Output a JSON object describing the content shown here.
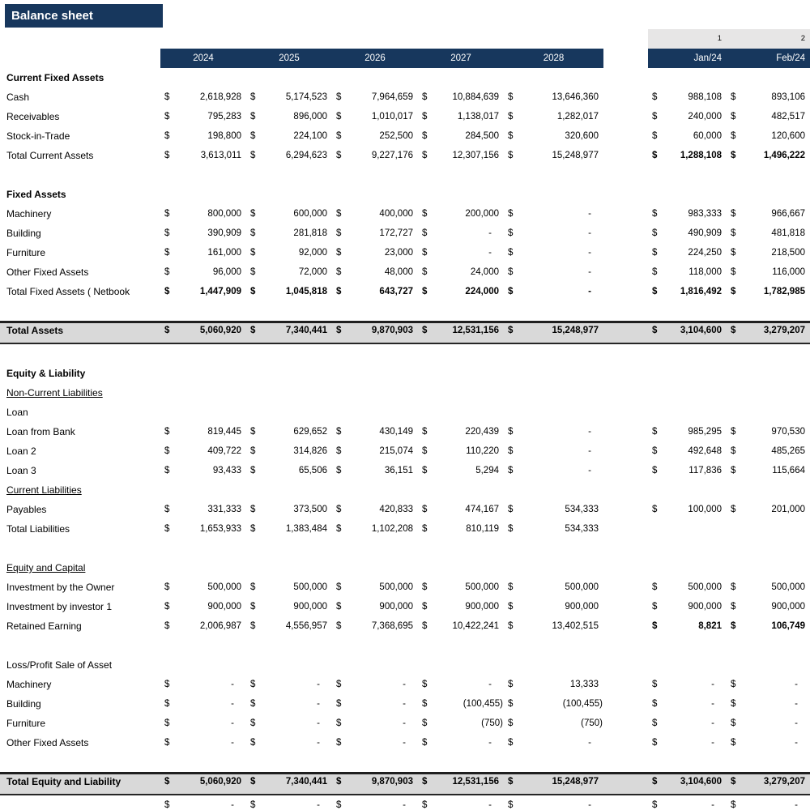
{
  "title": "Balance sheet",
  "colors": {
    "header_bg": "#17375D",
    "total_row_bg": "#D9D9D9",
    "index_band_bg": "#E7E6E6",
    "header_text": "#FFFFFF"
  },
  "columns": {
    "years": [
      "2024",
      "2025",
      "2026",
      "2027",
      "2028"
    ],
    "month_numbers": [
      "1",
      "2"
    ],
    "months": [
      "Jan/24",
      "Feb/24"
    ],
    "currency_symbol": "$"
  },
  "rows": [
    {
      "label": "Current Fixed Assets",
      "style": "section"
    },
    {
      "label": "Cash",
      "style": "item",
      "annual": [
        "2,618,928",
        "5,174,523",
        "7,964,659",
        "10,884,639",
        "13,646,360"
      ],
      "monthly": [
        "988,108",
        "893,106"
      ]
    },
    {
      "label": "Receivables",
      "style": "item",
      "annual": [
        "795,283",
        "896,000",
        "1,010,017",
        "1,138,017",
        "1,282,017"
      ],
      "monthly": [
        "240,000",
        "482,517"
      ]
    },
    {
      "label": "Stock-in-Trade",
      "style": "item",
      "annual": [
        "198,800",
        "224,100",
        "252,500",
        "284,500",
        "320,600"
      ],
      "monthly": [
        "60,000",
        "120,600"
      ]
    },
    {
      "label": "Total Current Assets",
      "style": "item-mbold",
      "annual": [
        "3,613,011",
        "6,294,623",
        "9,227,176",
        "12,307,156",
        "15,248,977"
      ],
      "monthly": [
        "1,288,108",
        "1,496,222"
      ]
    },
    {
      "label": "",
      "style": "spacer"
    },
    {
      "label": "Fixed Assets",
      "style": "section"
    },
    {
      "label": "Machinery",
      "style": "item",
      "annual": [
        "800,000",
        "600,000",
        "400,000",
        "200,000",
        "-"
      ],
      "monthly": [
        "983,333",
        "966,667"
      ]
    },
    {
      "label": "Building",
      "style": "item",
      "annual": [
        "390,909",
        "281,818",
        "172,727",
        "-",
        "-"
      ],
      "monthly": [
        "490,909",
        "481,818"
      ]
    },
    {
      "label": "Furniture",
      "style": "item",
      "annual": [
        "161,000",
        "92,000",
        "23,000",
        "-",
        "-"
      ],
      "monthly": [
        "224,250",
        "218,500"
      ]
    },
    {
      "label": "Other Fixed Assets",
      "style": "item",
      "annual": [
        "96,000",
        "72,000",
        "48,000",
        "24,000",
        "-"
      ],
      "monthly": [
        "118,000",
        "116,000"
      ]
    },
    {
      "label": "Total Fixed Assets ( Netbook",
      "style": "subtotal",
      "annual": [
        "1,447,909",
        "1,045,818",
        "643,727",
        "224,000",
        "-"
      ],
      "monthly": [
        "1,816,492",
        "1,782,985"
      ]
    },
    {
      "label": "",
      "style": "spacer"
    },
    {
      "label": "Total Assets",
      "style": "grandtotal",
      "annual": [
        "5,060,920",
        "7,340,441",
        "9,870,903",
        "12,531,156",
        "15,248,977"
      ],
      "monthly": [
        "3,104,600",
        "3,279,207"
      ]
    },
    {
      "label": "",
      "style": "spacer"
    },
    {
      "label": "Equity & Liability",
      "style": "section"
    },
    {
      "label": "Non-Current Liabilities",
      "style": "underline"
    },
    {
      "label": "Loan",
      "style": "item"
    },
    {
      "label": "Loan from Bank",
      "style": "item",
      "annual": [
        "819,445",
        "629,652",
        "430,149",
        "220,439",
        "-"
      ],
      "monthly": [
        "985,295",
        "970,530"
      ]
    },
    {
      "label": "Loan 2",
      "style": "item",
      "annual": [
        "409,722",
        "314,826",
        "215,074",
        "110,220",
        "-"
      ],
      "monthly": [
        "492,648",
        "485,265"
      ]
    },
    {
      "label": "Loan 3",
      "style": "item",
      "annual": [
        "93,433",
        "65,506",
        "36,151",
        "5,294",
        "-"
      ],
      "monthly": [
        "117,836",
        "115,664"
      ]
    },
    {
      "label": "Current Liabilities",
      "style": "underline"
    },
    {
      "label": "Payables",
      "style": "item",
      "annual": [
        "331,333",
        "373,500",
        "420,833",
        "474,167",
        "534,333"
      ],
      "monthly": [
        "100,000",
        "201,000"
      ]
    },
    {
      "label": "Total Liabilities",
      "style": "item",
      "annual": [
        "1,653,933",
        "1,383,484",
        "1,102,208",
        "810,119",
        "534,333"
      ],
      "monthly": [
        "",
        ""
      ]
    },
    {
      "label": "",
      "style": "spacer"
    },
    {
      "label": "Equity and Capital",
      "style": "underline"
    },
    {
      "label": "Investment by the Owner",
      "style": "item",
      "annual": [
        "500,000",
        "500,000",
        "500,000",
        "500,000",
        "500,000"
      ],
      "monthly": [
        "500,000",
        "500,000"
      ]
    },
    {
      "label": "Investment by investor 1",
      "style": "item",
      "annual": [
        "900,000",
        "900,000",
        "900,000",
        "900,000",
        "900,000"
      ],
      "monthly": [
        "900,000",
        "900,000"
      ]
    },
    {
      "label": "Retained Earning",
      "style": "item-mbold",
      "annual": [
        "2,006,987",
        "4,556,957",
        "7,368,695",
        "10,422,241",
        "13,402,515"
      ],
      "monthly": [
        "8,821",
        "106,749"
      ]
    },
    {
      "label": "",
      "style": "spacer"
    },
    {
      "label": "Loss/Profit Sale of Asset",
      "style": "item"
    },
    {
      "label": "Machinery",
      "style": "item",
      "annual": [
        "-",
        "-",
        "-",
        "-",
        "13,333"
      ],
      "monthly": [
        "-",
        "-"
      ]
    },
    {
      "label": "Building",
      "style": "item",
      "annual": [
        "-",
        "-",
        "-",
        "(100,455)",
        "(100,455)"
      ],
      "monthly": [
        "-",
        "-"
      ]
    },
    {
      "label": "Furniture",
      "style": "item",
      "annual": [
        "-",
        "-",
        "-",
        "(750)",
        "(750)"
      ],
      "monthly": [
        "-",
        "-"
      ]
    },
    {
      "label": "Other Fixed Assets",
      "style": "item",
      "annual": [
        "-",
        "-",
        "-",
        "-",
        "-"
      ],
      "monthly": [
        "-",
        "-"
      ]
    },
    {
      "label": "",
      "style": "spacer"
    },
    {
      "label": "Total Equity and Liability",
      "style": "grandtotal",
      "annual": [
        "5,060,920",
        "7,340,441",
        "9,870,903",
        "12,531,156",
        "15,248,977"
      ],
      "monthly": [
        "3,104,600",
        "3,279,207"
      ]
    },
    {
      "label": "",
      "style": "check",
      "annual": [
        "-",
        "-",
        "-",
        "-",
        "-"
      ],
      "monthly": [
        "-",
        "-"
      ]
    }
  ]
}
